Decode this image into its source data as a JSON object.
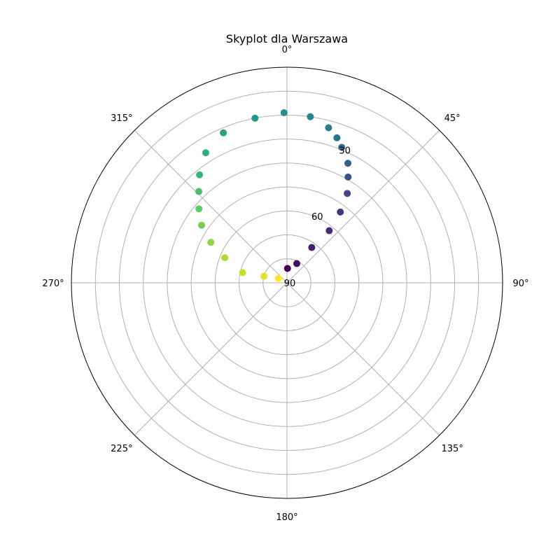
{
  "chart_data": {
    "type": "scatter",
    "projection": "polar",
    "title": "Skyplot dla Warszawa",
    "theta_zero": "N",
    "theta_direction": "clockwise",
    "rlim": [
      90,
      0
    ],
    "grid": true,
    "colormap": "viridis",
    "angular_tick_labels": [
      "0°",
      "45°",
      "90°",
      "135°",
      "180°",
      "225°",
      "270°",
      "315°"
    ],
    "radial_tick_labels": [
      {
        "value": 30,
        "label": "30"
      },
      {
        "value": 60,
        "label": "60"
      },
      {
        "value": 90,
        "label": "90"
      }
    ],
    "radial_grid_values": [
      80,
      70,
      60,
      50,
      40,
      30,
      20,
      10,
      0
    ],
    "points": [
      {
        "azimuth": 2,
        "elevation": 84
      },
      {
        "azimuth": 27,
        "elevation": 81
      },
      {
        "azimuth": 35,
        "elevation": 72
      },
      {
        "azimuth": 39,
        "elevation": 62
      },
      {
        "azimuth": 37,
        "elevation": 53
      },
      {
        "azimuth": 34,
        "elevation": 45
      },
      {
        "azimuth": 30,
        "elevation": 39
      },
      {
        "azimuth": 27,
        "elevation": 34
      },
      {
        "azimuth": 22,
        "elevation": 29
      },
      {
        "azimuth": 19,
        "elevation": 26
      },
      {
        "azimuth": 15,
        "elevation": 23
      },
      {
        "azimuth": 8,
        "elevation": 20
      },
      {
        "azimuth": 359,
        "elevation": 19
      },
      {
        "azimuth": 349,
        "elevation": 20
      },
      {
        "azimuth": 337,
        "elevation": 22
      },
      {
        "azimuth": 328,
        "elevation": 26
      },
      {
        "azimuth": 321,
        "elevation": 32
      },
      {
        "azimuth": 316,
        "elevation": 37
      },
      {
        "azimuth": 310,
        "elevation": 42
      },
      {
        "azimuth": 304,
        "elevation": 47
      },
      {
        "azimuth": 298,
        "elevation": 54
      },
      {
        "azimuth": 292,
        "elevation": 62
      },
      {
        "azimuth": 283,
        "elevation": 71
      },
      {
        "azimuth": 286,
        "elevation": 80
      },
      {
        "azimuth": 297,
        "elevation": 86
      }
    ]
  }
}
